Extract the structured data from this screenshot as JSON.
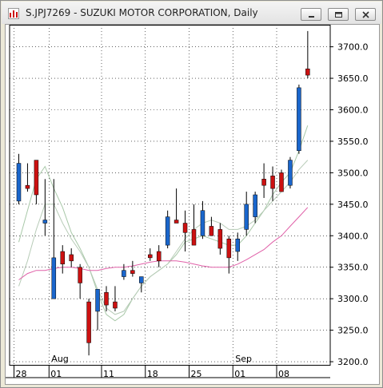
{
  "window": {
    "title": "S.JPJ7269 - SUZUKI MOTOR CORPORATION, Daily",
    "icons": {
      "app": "chart-app-icon",
      "minimize": "minimize-icon",
      "maximize": "maximize-icon",
      "close": "close-icon"
    }
  },
  "chart_data": {
    "type": "candlestick",
    "title": "S.JPJ7269 - SUZUKI MOTOR CORPORATION, Daily",
    "ylim": [
      3195,
      3735
    ],
    "y_ticks": [
      3200,
      3250,
      3300,
      3350,
      3400,
      3450,
      3500,
      3550,
      3600,
      3650,
      3700
    ],
    "y_tick_labels": [
      "3200.0",
      "3250.0",
      "3300.0",
      "3350.0",
      "3400.0",
      "3450.0",
      "3500.0",
      "3550.0",
      "3600.0",
      "3650.0",
      "3700.0"
    ],
    "x_tick_labels": [
      {
        "label": "28",
        "index": 0
      },
      {
        "label": "01",
        "index": 4
      },
      {
        "label": "11",
        "index": 10
      },
      {
        "label": "18",
        "index": 15
      },
      {
        "label": "25",
        "index": 20
      },
      {
        "label": "01",
        "index": 25
      },
      {
        "label": "08",
        "index": 30
      }
    ],
    "month_labels": [
      {
        "label": "Aug",
        "index": 4
      },
      {
        "label": "Sep",
        "index": 25
      }
    ],
    "colors": {
      "up": "#1a66cc",
      "down": "#cc1111",
      "wick": "#000000",
      "ma_short": "#a8c8a8",
      "ma_mid": "#b8ccb8",
      "ma_long": "#e060a8"
    },
    "candles": [
      {
        "o": 3455,
        "h": 3530,
        "l": 3450,
        "c": 3515
      },
      {
        "o": 3480,
        "h": 3515,
        "l": 3470,
        "c": 3475
      },
      {
        "o": 3520,
        "h": 3520,
        "l": 3450,
        "c": 3465
      },
      {
        "o": 3420,
        "h": 3490,
        "l": 3400,
        "c": 3425
      },
      {
        "o": 3300,
        "h": 3490,
        "l": 3300,
        "c": 3365
      },
      {
        "o": 3375,
        "h": 3385,
        "l": 3340,
        "c": 3355
      },
      {
        "o": 3370,
        "h": 3380,
        "l": 3350,
        "c": 3360
      },
      {
        "o": 3350,
        "h": 3355,
        "l": 3300,
        "c": 3325
      },
      {
        "o": 3295,
        "h": 3300,
        "l": 3210,
        "c": 3230
      },
      {
        "o": 3280,
        "h": 3310,
        "l": 3250,
        "c": 3315
      },
      {
        "o": 3310,
        "h": 3320,
        "l": 3280,
        "c": 3290
      },
      {
        "o": 3295,
        "h": 3320,
        "l": 3280,
        "c": 3285
      },
      {
        "o": 3335,
        "h": 3355,
        "l": 3330,
        "c": 3345
      },
      {
        "o": 3345,
        "h": 3360,
        "l": 3335,
        "c": 3340
      },
      {
        "o": 3325,
        "h": 3335,
        "l": 3310,
        "c": 3335
      },
      {
        "o": 3370,
        "h": 3380,
        "l": 3360,
        "c": 3365
      },
      {
        "o": 3375,
        "h": 3385,
        "l": 3350,
        "c": 3360
      },
      {
        "o": 3385,
        "h": 3440,
        "l": 3380,
        "c": 3430
      },
      {
        "o": 3425,
        "h": 3475,
        "l": 3420,
        "c": 3420
      },
      {
        "o": 3420,
        "h": 3440,
        "l": 3375,
        "c": 3405
      },
      {
        "o": 3410,
        "h": 3450,
        "l": 3385,
        "c": 3385
      },
      {
        "o": 3400,
        "h": 3455,
        "l": 3395,
        "c": 3440
      },
      {
        "o": 3415,
        "h": 3430,
        "l": 3400,
        "c": 3400
      },
      {
        "o": 3410,
        "h": 3420,
        "l": 3370,
        "c": 3380
      },
      {
        "o": 3395,
        "h": 3400,
        "l": 3340,
        "c": 3365
      },
      {
        "o": 3375,
        "h": 3405,
        "l": 3360,
        "c": 3395
      },
      {
        "o": 3410,
        "h": 3470,
        "l": 3400,
        "c": 3450
      },
      {
        "o": 3430,
        "h": 3470,
        "l": 3420,
        "c": 3465
      },
      {
        "o": 3490,
        "h": 3515,
        "l": 3460,
        "c": 3480
      },
      {
        "o": 3495,
        "h": 3510,
        "l": 3455,
        "c": 3475
      },
      {
        "o": 3500,
        "h": 3505,
        "l": 3470,
        "c": 3470
      },
      {
        "o": 3480,
        "h": 3525,
        "l": 3475,
        "c": 3520
      },
      {
        "o": 3535,
        "h": 3640,
        "l": 3530,
        "c": 3635
      },
      {
        "o": 3665,
        "h": 3725,
        "l": 3650,
        "c": 3655
      }
    ],
    "ma_short": [
      3390,
      3440,
      3490,
      3510,
      3475,
      3445,
      3405,
      3380,
      3350,
      3310,
      3275,
      3265,
      3275,
      3300,
      3320,
      3335,
      3345,
      3355,
      3370,
      3390,
      3395,
      3400,
      3395,
      3390,
      3385,
      3385,
      3400,
      3420,
      3440,
      3465,
      3485,
      3500,
      3535,
      3575
    ],
    "ma_mid": [
      3320,
      3360,
      3410,
      3450,
      3450,
      3420,
      3395,
      3375,
      3350,
      3315,
      3285,
      3275,
      3280,
      3300,
      3320,
      3335,
      3345,
      3355,
      3375,
      3395,
      3410,
      3420,
      3425,
      3420,
      3410,
      3410,
      3415,
      3425,
      3440,
      3455,
      3470,
      3485,
      3505,
      3520
    ],
    "ma_long": [
      3330,
      3340,
      3345,
      3345,
      3348,
      3350,
      3350,
      3348,
      3345,
      3345,
      3348,
      3350,
      3350,
      3352,
      3355,
      3358,
      3360,
      3360,
      3360,
      3358,
      3355,
      3352,
      3350,
      3350,
      3350,
      3355,
      3362,
      3370,
      3378,
      3390,
      3400,
      3415,
      3430,
      3445
    ]
  }
}
